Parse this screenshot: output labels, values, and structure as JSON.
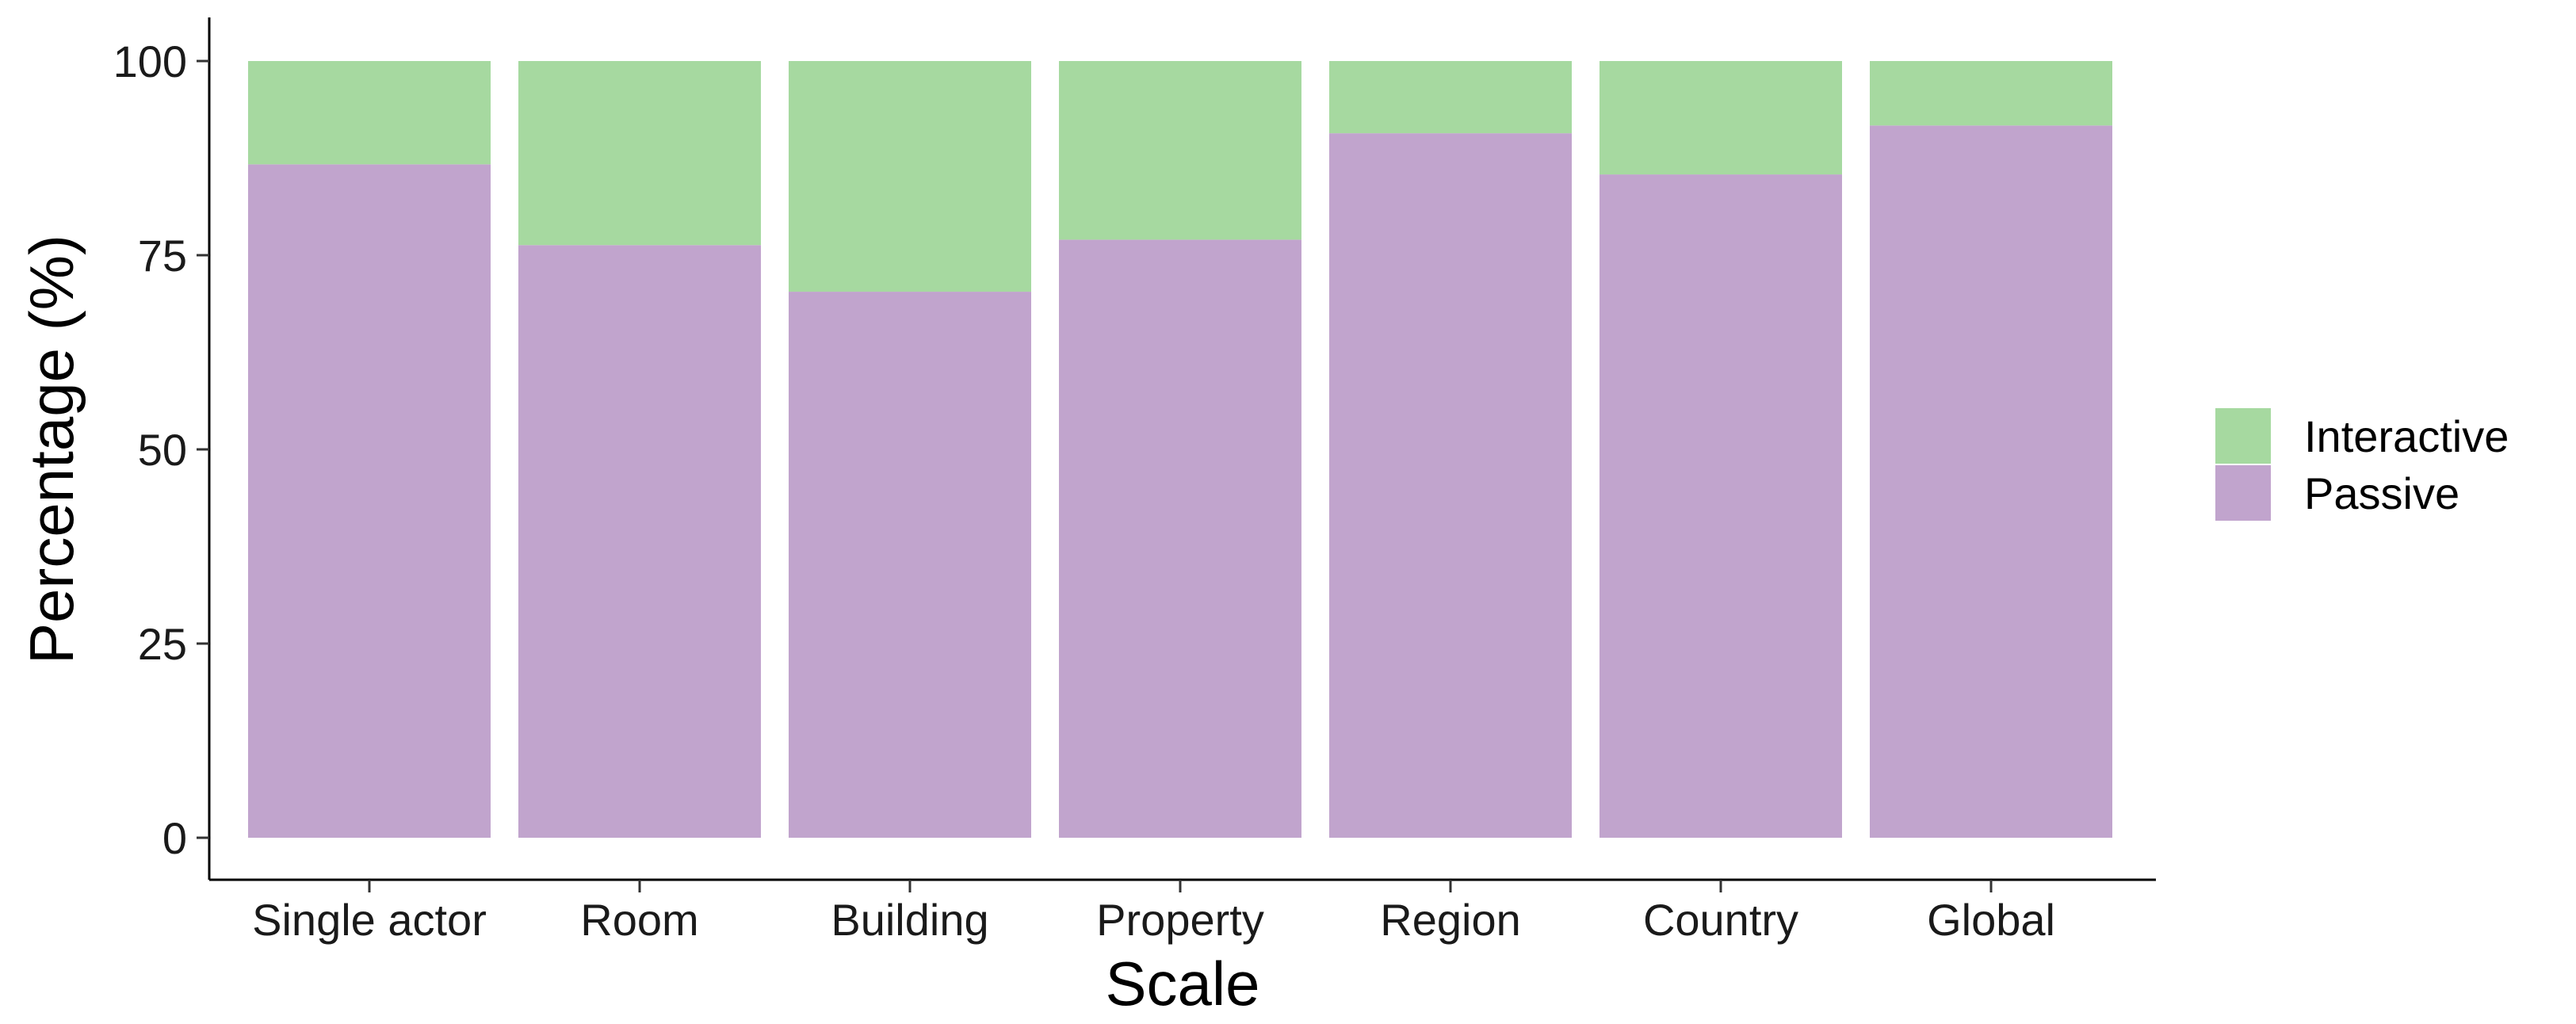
{
  "chart_data": {
    "type": "bar",
    "stacked": true,
    "percent": true,
    "categories": [
      "Single actor",
      "Room",
      "Building",
      "Property",
      "Region",
      "Country",
      "Global"
    ],
    "series": [
      {
        "name": "Passive",
        "color": "#c1a4cd",
        "values": [
          86.7,
          76.3,
          70.3,
          77.0,
          90.7,
          85.4,
          91.7
        ]
      },
      {
        "name": "Interactive",
        "color": "#a6d9a0",
        "values": [
          13.3,
          23.7,
          29.7,
          23.0,
          9.3,
          14.6,
          8.3
        ]
      }
    ],
    "xlabel": "Scale",
    "ylabel": "Percentage (%)",
    "ylim": [
      0,
      100
    ],
    "yticks": [
      0,
      25,
      50,
      75,
      100
    ],
    "grid": false,
    "legend": {
      "position": "right",
      "entries": [
        {
          "label": "Interactive",
          "color": "#a6d9a0"
        },
        {
          "label": "Passive",
          "color": "#c1a4cd"
        }
      ]
    }
  }
}
